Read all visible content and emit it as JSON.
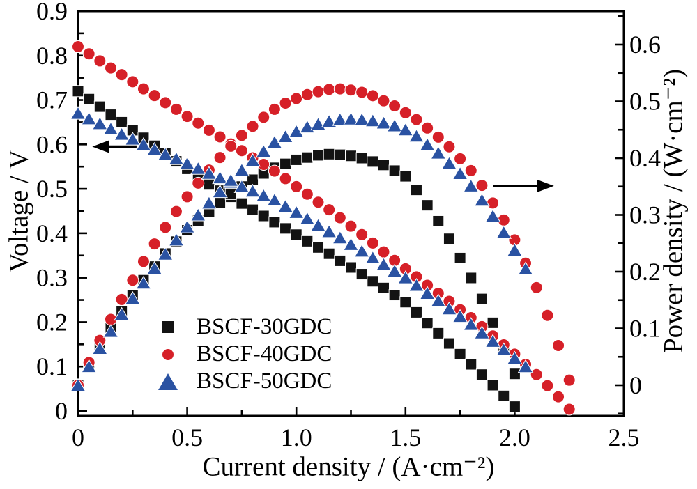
{
  "figure": {
    "background": "#ffffff",
    "frame_color": "#000000",
    "description": "Fuel cell polarization (I-V) and power density curves for three cathode compositions"
  },
  "chart_data": {
    "type": "scatter",
    "grid": false,
    "x_axis": {
      "label": "Current density / (A·cm⁻²)",
      "min": 0,
      "max": 2.5,
      "major_ticks": [
        0,
        0.5,
        1.0,
        1.5,
        2.0,
        2.5
      ],
      "major_tick_labels": [
        "0",
        "0.5",
        "1.0",
        "1.5",
        "2.0",
        "2.5"
      ],
      "minor_ticks": [
        0.25,
        0.75,
        1.25,
        1.75,
        2.25
      ]
    },
    "y_left_axis": {
      "label": "Voltage / V",
      "min": 0,
      "max": 0.9,
      "major_ticks": [
        0,
        0.1,
        0.2,
        0.3,
        0.4,
        0.5,
        0.6,
        0.7,
        0.8,
        0.9
      ],
      "major_tick_labels": [
        "0",
        "0.1",
        "0.2",
        "0.3",
        "0.4",
        "0.5",
        "0.6",
        "0.7",
        "0.8",
        "0.9"
      ],
      "minor_ticks": [
        0.05,
        0.15,
        0.25,
        0.35,
        0.45,
        0.55,
        0.65,
        0.75,
        0.85
      ]
    },
    "y_right_axis": {
      "label": "Power density / (W·cm⁻²)",
      "min": -0.054,
      "max": 0.66,
      "major_ticks": [
        0,
        0.1,
        0.2,
        0.3,
        0.4,
        0.5,
        0.6
      ],
      "major_tick_labels": [
        "0",
        "0.1",
        "0.2",
        "0.3",
        "0.4",
        "0.5",
        "0.6"
      ],
      "minor_ticks": [
        -0.05,
        0.05,
        0.15,
        0.25,
        0.35,
        0.45,
        0.55,
        0.65
      ]
    },
    "legend": {
      "position": "lower-left-center",
      "border": false
    },
    "series": [
      {
        "name": "BSCF-30GDC",
        "marker": "square",
        "color": "#131313",
        "current_density": [
          0,
          0.05,
          0.1,
          0.15,
          0.2,
          0.25,
          0.3,
          0.35,
          0.4,
          0.45,
          0.5,
          0.55,
          0.6,
          0.65,
          0.7,
          0.75,
          0.8,
          0.85,
          0.9,
          0.95,
          1.0,
          1.05,
          1.1,
          1.15,
          1.2,
          1.25,
          1.3,
          1.35,
          1.4,
          1.45,
          1.5,
          1.55,
          1.6,
          1.65,
          1.7,
          1.75,
          1.8,
          1.85,
          1.9,
          1.95,
          2.0
        ],
        "voltage": [
          0.72,
          0.702,
          0.685,
          0.667,
          0.65,
          0.632,
          0.615,
          0.597,
          0.58,
          0.562,
          0.545,
          0.527,
          0.51,
          0.496,
          0.482,
          0.467,
          0.453,
          0.439,
          0.425,
          0.411,
          0.397,
          0.382,
          0.368,
          0.354,
          0.338,
          0.323,
          0.308,
          0.292,
          0.277,
          0.261,
          0.245,
          0.222,
          0.198,
          0.175,
          0.152,
          0.128,
          0.105,
          0.082,
          0.058,
          0.034,
          0.01
        ],
        "power_density": [
          0,
          0.035,
          0.069,
          0.1,
          0.13,
          0.158,
          0.185,
          0.209,
          0.232,
          0.253,
          0.273,
          0.29,
          0.306,
          0.322,
          0.337,
          0.35,
          0.362,
          0.373,
          0.383,
          0.39,
          0.397,
          0.401,
          0.405,
          0.407,
          0.406,
          0.404,
          0.4,
          0.394,
          0.388,
          0.378,
          0.368,
          0.344,
          0.317,
          0.289,
          0.258,
          0.224,
          0.189,
          0.152,
          0.11,
          0.066,
          0.02
        ]
      },
      {
        "name": "BSCF-40GDC",
        "marker": "circle",
        "color": "#d62028",
        "current_density": [
          0,
          0.05,
          0.1,
          0.15,
          0.2,
          0.25,
          0.3,
          0.35,
          0.4,
          0.45,
          0.5,
          0.55,
          0.6,
          0.65,
          0.7,
          0.75,
          0.8,
          0.85,
          0.9,
          0.95,
          1.0,
          1.05,
          1.1,
          1.15,
          1.2,
          1.25,
          1.3,
          1.35,
          1.4,
          1.45,
          1.5,
          1.55,
          1.6,
          1.65,
          1.7,
          1.75,
          1.8,
          1.85,
          1.9,
          1.95,
          2.0,
          2.05,
          2.1,
          2.15,
          2.2,
          2.25
        ],
        "voltage": [
          0.82,
          0.804,
          0.788,
          0.772,
          0.757,
          0.741,
          0.725,
          0.71,
          0.694,
          0.679,
          0.663,
          0.648,
          0.632,
          0.617,
          0.601,
          0.586,
          0.57,
          0.555,
          0.54,
          0.523,
          0.505,
          0.488,
          0.47,
          0.453,
          0.435,
          0.416,
          0.397,
          0.378,
          0.358,
          0.339,
          0.32,
          0.302,
          0.283,
          0.265,
          0.247,
          0.228,
          0.21,
          0.19,
          0.169,
          0.149,
          0.128,
          0.105,
          0.082,
          0.057,
          0.032,
          0.004
        ],
        "power_density": [
          0,
          0.04,
          0.079,
          0.116,
          0.151,
          0.185,
          0.218,
          0.249,
          0.278,
          0.306,
          0.332,
          0.356,
          0.379,
          0.401,
          0.421,
          0.44,
          0.456,
          0.472,
          0.486,
          0.497,
          0.505,
          0.512,
          0.517,
          0.521,
          0.522,
          0.52,
          0.516,
          0.51,
          0.501,
          0.492,
          0.48,
          0.468,
          0.453,
          0.437,
          0.42,
          0.399,
          0.378,
          0.352,
          0.321,
          0.291,
          0.256,
          0.215,
          0.172,
          0.123,
          0.07,
          0.009
        ]
      },
      {
        "name": "BSCF-50GDC",
        "marker": "triangle",
        "color": "#2a52a2",
        "current_density": [
          0,
          0.05,
          0.1,
          0.15,
          0.2,
          0.25,
          0.3,
          0.35,
          0.4,
          0.45,
          0.5,
          0.55,
          0.6,
          0.65,
          0.7,
          0.75,
          0.8,
          0.85,
          0.9,
          0.95,
          1.0,
          1.05,
          1.1,
          1.15,
          1.2,
          1.25,
          1.3,
          1.35,
          1.4,
          1.45,
          1.5,
          1.55,
          1.6,
          1.65,
          1.7,
          1.75,
          1.8,
          1.85,
          1.9,
          1.95,
          2.0,
          2.05
        ],
        "voltage": [
          0.67,
          0.658,
          0.647,
          0.635,
          0.623,
          0.612,
          0.6,
          0.589,
          0.578,
          0.568,
          0.557,
          0.546,
          0.535,
          0.525,
          0.515,
          0.505,
          0.495,
          0.485,
          0.475,
          0.461,
          0.447,
          0.433,
          0.418,
          0.404,
          0.39,
          0.375,
          0.36,
          0.345,
          0.33,
          0.315,
          0.3,
          0.283,
          0.265,
          0.248,
          0.23,
          0.213,
          0.195,
          0.176,
          0.157,
          0.138,
          0.119,
          0.1
        ],
        "power_density": [
          0,
          0.033,
          0.065,
          0.095,
          0.125,
          0.153,
          0.18,
          0.206,
          0.231,
          0.256,
          0.279,
          0.3,
          0.321,
          0.341,
          0.361,
          0.379,
          0.396,
          0.412,
          0.428,
          0.438,
          0.447,
          0.455,
          0.46,
          0.465,
          0.468,
          0.469,
          0.468,
          0.466,
          0.462,
          0.457,
          0.45,
          0.439,
          0.424,
          0.409,
          0.391,
          0.373,
          0.351,
          0.326,
          0.298,
          0.269,
          0.238,
          0.205
        ]
      }
    ],
    "annotations": [
      {
        "type": "arrow",
        "direction": "left",
        "meaning": "voltage curves read on left axis",
        "x_from": 0.268,
        "x_to": 0.065,
        "y_axis": "left",
        "y_value": 0.595
      },
      {
        "type": "arrow",
        "direction": "right",
        "meaning": "power density curves read on right axis",
        "x_from": 1.9,
        "x_to": 2.18,
        "y_axis": "right",
        "y_value": 0.351
      }
    ]
  }
}
